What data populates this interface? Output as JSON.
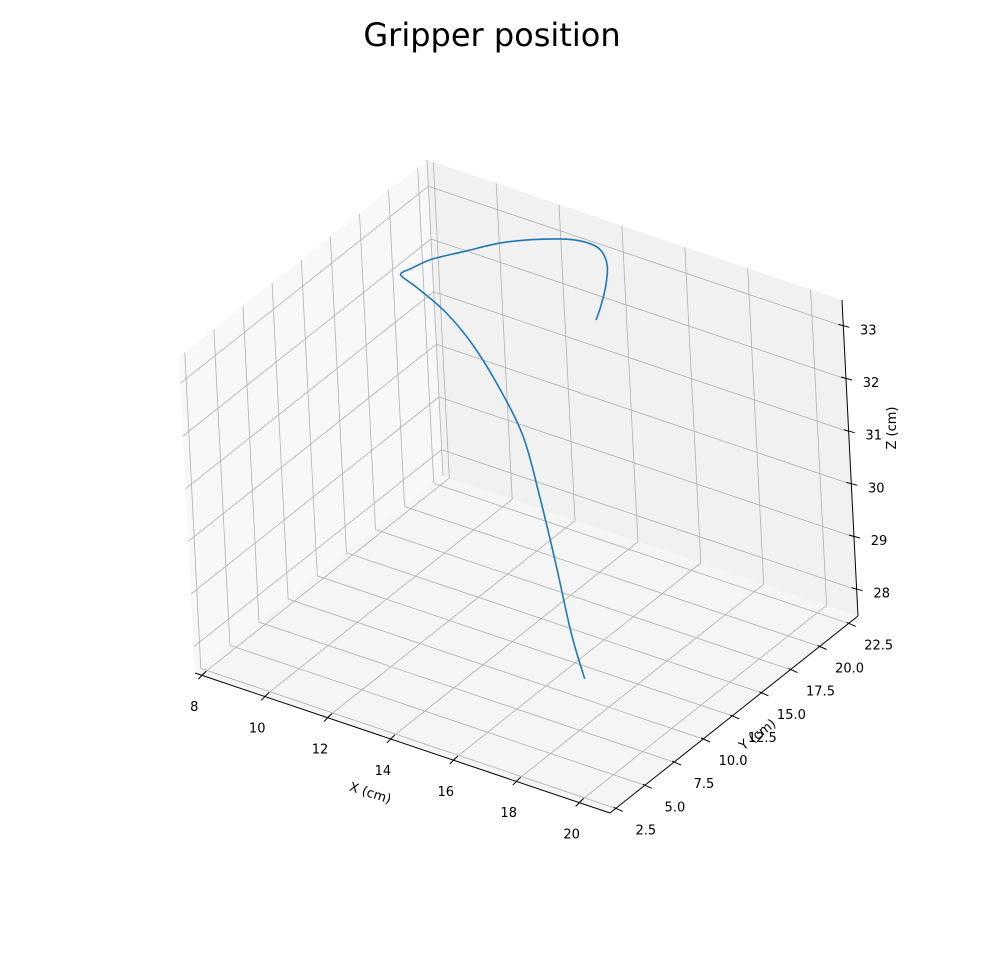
{
  "chart_data": {
    "type": "line3d",
    "title": "Gripper position",
    "xlabel": "X (cm)",
    "ylabel": "Y (cm)",
    "zlabel": "Z (cm)",
    "xlim": [
      7.8,
      21.0
    ],
    "ylim": [
      2.0,
      23.3
    ],
    "zlim": [
      27.5,
      33.5
    ],
    "xticks": [
      "8",
      "10",
      "12",
      "14",
      "16",
      "18",
      "20"
    ],
    "yticks": [
      "2.5",
      "5.0",
      "7.5",
      "10.0",
      "12.5",
      "15.0",
      "17.5",
      "20.0",
      "22.5"
    ],
    "zticks": [
      "28",
      "29",
      "30",
      "31",
      "32",
      "33"
    ],
    "grid": true,
    "color": "#1f77b4",
    "series": [
      {
        "x": [
          18.67,
          18.0,
          17.0,
          15.8,
          14.5,
          13.0,
          11.5,
          10.2,
          9.0,
          8.3,
          8.25,
          8.5,
          9.0,
          9.8,
          10.8,
          11.9,
          12.9,
          13.7,
          14.2,
          14.4,
          14.4,
          14.3
        ],
        "y": [
          6.42,
          7.2,
          8.8,
          10.8,
          13.0,
          15.0,
          16.8,
          18.1,
          19.0,
          19.5,
          19.6,
          19.8,
          20.2,
          20.8,
          21.5,
          22.0,
          22.2,
          22.0,
          21.4,
          20.7,
          20.2,
          20.0
        ],
        "z": [
          28.8,
          29.4,
          30.2,
          30.9,
          31.4,
          31.7,
          31.9,
          32.0,
          32.05,
          32.05,
          32.1,
          32.2,
          32.4,
          32.6,
          32.85,
          33.05,
          33.2,
          33.25,
          33.15,
          32.9,
          32.6,
          32.35
        ]
      }
    ]
  }
}
